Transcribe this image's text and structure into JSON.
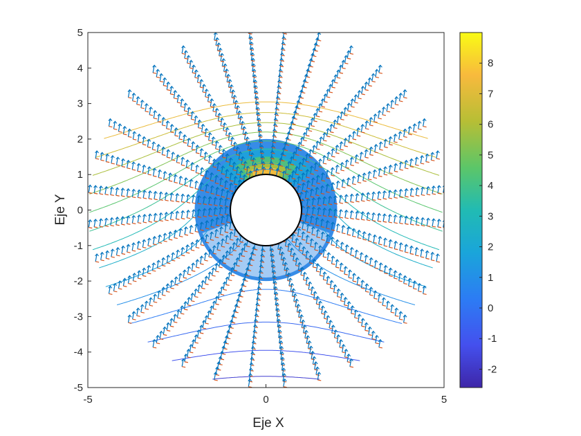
{
  "chart_data": {
    "type": "quiver-contour",
    "xlabel": "Eje X",
    "ylabel": "Eje Y",
    "xlim": [
      -5,
      5
    ],
    "ylim": [
      -5,
      5
    ],
    "x_ticks": [
      "-5",
      "0",
      "5"
    ],
    "y_ticks": [
      "-5",
      "-4",
      "-3",
      "-2",
      "-1",
      "0",
      "1",
      "2",
      "3",
      "4",
      "5"
    ],
    "grid": false,
    "colormap": "parula",
    "colorbar": {
      "range": [
        -2.6,
        9.0
      ],
      "ticks": [
        "-2",
        "-1",
        "0",
        "1",
        "2",
        "3",
        "4",
        "5",
        "6",
        "7",
        "8"
      ],
      "placement": "right"
    },
    "cylinder": {
      "center": [
        0,
        0
      ],
      "radius": 1,
      "color": "#000000"
    },
    "field_disk": {
      "outer_radius": 2
    },
    "radial_lines": {
      "count": 32,
      "r_min": 1,
      "r_max": 5
    },
    "contour_levels": [
      -2.5,
      -2,
      -1.5,
      -1,
      -0.5,
      0,
      0.5,
      1,
      1.5,
      2,
      2.5,
      3,
      3.5,
      4,
      4.5
    ],
    "colors": {
      "vector_blue": "#0072BD",
      "vector_orange": "#D95319",
      "axes_color": "#262626"
    }
  }
}
